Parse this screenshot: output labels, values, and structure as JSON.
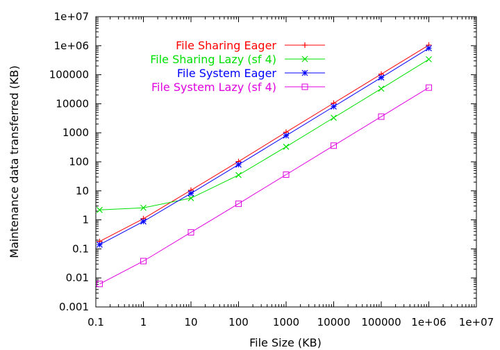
{
  "chart_data": {
    "type": "line",
    "xscale": "log",
    "yscale": "log",
    "xlabel": "File Size (KB)",
    "ylabel": "Maintenance data transferred (KB)",
    "xlim": [
      0.1,
      10000000
    ],
    "ylim": [
      0.001,
      10000000
    ],
    "x_ticks": [
      0.1,
      1,
      10,
      100,
      1000,
      10000,
      100000,
      1000000,
      10000000
    ],
    "x_tick_labels": [
      "0.1",
      "1",
      "10",
      "100",
      "1000",
      "10000",
      "100000",
      "1e+06",
      "1e+07"
    ],
    "y_ticks": [
      0.001,
      0.01,
      0.1,
      1,
      10,
      100,
      1000,
      10000,
      100000,
      1000000,
      10000000
    ],
    "y_tick_labels": [
      "0.001",
      "0.01",
      "0.1",
      "1",
      "10",
      "100",
      "1000",
      "10000",
      "100000",
      "1e+06",
      "1e+07"
    ],
    "legend_position": "top-left",
    "series": [
      {
        "name": "File Sharing Eager",
        "color": "#ff0000",
        "marker": "plus",
        "x": [
          0.12,
          1,
          10,
          100,
          1000,
          10000,
          100000,
          1000000
        ],
        "values": [
          0.18,
          1.1,
          10.5,
          102,
          1050,
          10500,
          105000,
          1050000
        ]
      },
      {
        "name": "File Sharing Lazy (sf 4)",
        "color": "#00e000",
        "marker": "cross",
        "x": [
          0.12,
          1,
          10,
          100,
          1000,
          10000,
          100000,
          1000000
        ],
        "values": [
          2.2,
          2.6,
          5.6,
          35,
          330,
          3300,
          33000,
          340000
        ]
      },
      {
        "name": "File System Eager",
        "color": "#0000ff",
        "marker": "star",
        "x": [
          0.12,
          1,
          10,
          100,
          1000,
          10000,
          100000,
          1000000
        ],
        "values": [
          0.14,
          0.88,
          8.2,
          80,
          800,
          8000,
          80000,
          820000
        ]
      },
      {
        "name": "File System Lazy (sf 4)",
        "color": "#e000e0",
        "marker": "square",
        "x": [
          0.12,
          1,
          10,
          100,
          1000,
          10000,
          100000,
          1000000
        ],
        "values": [
          0.0062,
          0.038,
          0.37,
          3.6,
          36,
          360,
          3600,
          36000
        ]
      }
    ]
  }
}
